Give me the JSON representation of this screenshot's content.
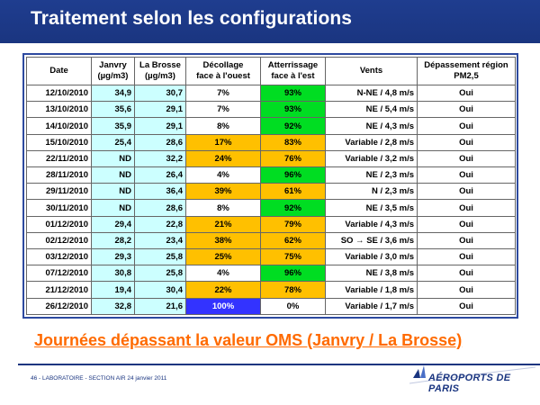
{
  "header": {
    "title": "Traitement selon les configurations"
  },
  "table": {
    "headers": {
      "date": "Date",
      "janvry_1": "Janvry",
      "janvry_2": "(µg/m3)",
      "labrosse_1": "La Brosse",
      "labrosse_2": "(µg/m3)",
      "decollage_1": "Décollage",
      "decollage_2": "face à l'ouest",
      "atterrissage_1": "Atterrissage",
      "atterrissage_2": "face à l'est",
      "vents": "Vents",
      "depassement_1": "Dépassement région",
      "depassement_2": "PM2,5"
    },
    "rows": [
      {
        "date": "12/10/2010",
        "janvry": "34,9",
        "labrosse": "30,7",
        "decollage": "7%",
        "atterrissage": "93%",
        "vents": "N-NE /  4,8 m/s",
        "depassement": "Oui"
      },
      {
        "date": "13/10/2010",
        "janvry": "35,6",
        "labrosse": "29,1",
        "decollage": "7%",
        "atterrissage": "93%",
        "vents": "NE /  5,4 m/s",
        "depassement": "Oui"
      },
      {
        "date": "14/10/2010",
        "janvry": "35,9",
        "labrosse": "29,1",
        "decollage": "8%",
        "atterrissage": "92%",
        "vents": "NE /  4,3 m/s",
        "depassement": "Oui"
      },
      {
        "date": "15/10/2010",
        "janvry": "25,4",
        "labrosse": "28,6",
        "decollage": "17%",
        "atterrissage": "83%",
        "vents": "Variable /  2,8 m/s",
        "depassement": "Oui"
      },
      {
        "date": "22/11/2010",
        "janvry": "ND",
        "labrosse": "32,2",
        "decollage": "24%",
        "atterrissage": "76%",
        "vents": "Variable / 3,2 m/s",
        "depassement": "Oui"
      },
      {
        "date": "28/11/2010",
        "janvry": "ND",
        "labrosse": "26,4",
        "decollage": "4%",
        "atterrissage": "96%",
        "vents": "NE /  2,3 m/s",
        "depassement": "Oui"
      },
      {
        "date": "29/11/2010",
        "janvry": "ND",
        "labrosse": "36,4",
        "decollage": "39%",
        "atterrissage": "61%",
        "vents": "N / 2,3 m/s",
        "depassement": "Oui"
      },
      {
        "date": "30/11/2010",
        "janvry": "ND",
        "labrosse": "28,6",
        "decollage": "8%",
        "atterrissage": "92%",
        "vents": "NE / 3,5 m/s",
        "depassement": "Oui"
      },
      {
        "date": "01/12/2010",
        "janvry": "29,4",
        "labrosse": "22,8",
        "decollage": "21%",
        "atterrissage": "79%",
        "vents": "Variable /  4,3 m/s",
        "depassement": "Oui"
      },
      {
        "date": "02/12/2010",
        "janvry": "28,2",
        "labrosse": "23,4",
        "decollage": "38%",
        "atterrissage": "62%",
        "vents": "SO → SE /  3,6 m/s",
        "depassement": "Oui"
      },
      {
        "date": "03/12/2010",
        "janvry": "29,3",
        "labrosse": "25,8",
        "decollage": "25%",
        "atterrissage": "75%",
        "vents": "Variable /  3,0 m/s",
        "depassement": "Oui"
      },
      {
        "date": "07/12/2010",
        "janvry": "30,8",
        "labrosse": "25,8",
        "decollage": "4%",
        "atterrissage": "96%",
        "vents": "NE /  3,8 m/s",
        "depassement": "Oui"
      },
      {
        "date": "21/12/2010",
        "janvry": "19,4",
        "labrosse": "30,4",
        "decollage": "22%",
        "atterrissage": "78%",
        "vents": "Variable /  1,8 m/s",
        "depassement": "Oui"
      },
      {
        "date": "26/12/2010",
        "janvry": "32,8",
        "labrosse": "21,6",
        "decollage": "100%",
        "atterrissage": "0%",
        "vents": "Variable /  1,7 m/s",
        "depassement": "Oui"
      }
    ]
  },
  "footnote": "Journées dépassant la valeur OMS (Janvry / La Brosse)",
  "footer": {
    "page_info": "46 - LABORATOIRE - SECTION AIR 24 janvier 2011",
    "logo_text": "AÉROPORTS DE PARIS"
  },
  "colors": {
    "header_bg": "#1a3580",
    "highlight_green": "#00dd22",
    "highlight_orange": "#ffc000",
    "highlight_blue": "#3333ff",
    "cyan_cells": "#ccffff",
    "footnote": "#ff6a00"
  },
  "icons": {
    "logo": "aeroports-de-paris-logo"
  }
}
